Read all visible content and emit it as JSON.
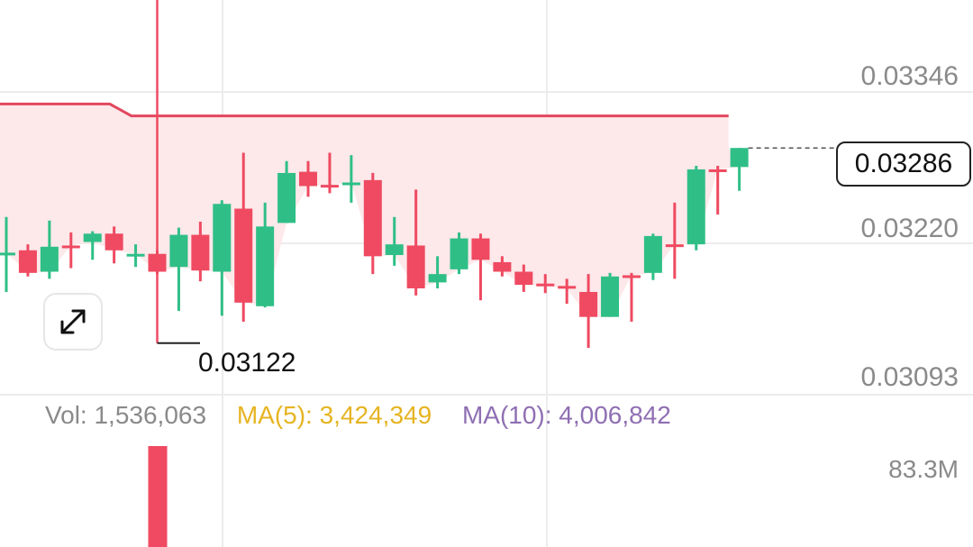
{
  "axis": {
    "price_labels": [
      "0.03346",
      "0.03220",
      "0.03093"
    ],
    "volume_max_label": "83.3M"
  },
  "current_price_tag": "0.03286",
  "crosshair_low_label": "0.03122",
  "volume_info": {
    "vol": "Vol: 1,536,063",
    "ma5": "MA(5): 3,424,349",
    "ma10": "MA(10): 4,006,842"
  },
  "colors": {
    "up": "#2fbf86",
    "down": "#ef4a61",
    "band_fill": "#fde8ea",
    "band_line": "#e2475e",
    "grid": "#ececec"
  },
  "icons": {
    "expand": "expand-arrows-icon"
  },
  "chart_data": {
    "type": "candlestick",
    "y_axis": {
      "labels": [
        0.03346,
        0.0322,
        0.03093
      ],
      "range": [
        0.0306,
        0.034
      ]
    },
    "current_price": 0.03286,
    "crosshair_low": 0.03122,
    "band_upper": [
      {
        "i": -1,
        "v": 0.03323
      },
      {
        "i": 4.8,
        "v": 0.03323
      },
      {
        "i": 5.8,
        "v": 0.03313
      },
      {
        "i": 33.5,
        "v": 0.03313
      }
    ],
    "candles": [
      {
        "o": 0.03198,
        "c": 0.03198,
        "h": 0.03228,
        "l": 0.03165
      },
      {
        "o": 0.032,
        "c": 0.03181,
        "h": 0.03205,
        "l": 0.03178
      },
      {
        "o": 0.03182,
        "c": 0.03203,
        "h": 0.03225,
        "l": 0.03176
      },
      {
        "o": 0.03204,
        "c": 0.03204,
        "h": 0.03215,
        "l": 0.03185
      },
      {
        "o": 0.03207,
        "c": 0.03214,
        "h": 0.03216,
        "l": 0.03192
      },
      {
        "o": 0.03214,
        "c": 0.032,
        "h": 0.0322,
        "l": 0.03189
      },
      {
        "o": 0.03197,
        "c": 0.03197,
        "h": 0.03205,
        "l": 0.03186
      },
      {
        "o": 0.03197,
        "c": 0.03182,
        "h": 0.032,
        "l": 0.0318
      },
      {
        "o": 0.03186,
        "c": 0.03213,
        "h": 0.03219,
        "l": 0.03149
      },
      {
        "o": 0.03213,
        "c": 0.03183,
        "h": 0.03224,
        "l": 0.03174
      },
      {
        "o": 0.03182,
        "c": 0.03239,
        "h": 0.03242,
        "l": 0.03145
      },
      {
        "o": 0.03235,
        "c": 0.03156,
        "h": 0.03282,
        "l": 0.0314
      },
      {
        "o": 0.03153,
        "c": 0.0322,
        "h": 0.0324,
        "l": 0.03152
      },
      {
        "o": 0.03223,
        "c": 0.03265,
        "h": 0.03275,
        "l": 0.03223
      },
      {
        "o": 0.03266,
        "c": 0.03254,
        "h": 0.03275,
        "l": 0.03245
      },
      {
        "o": 0.03255,
        "c": 0.03255,
        "h": 0.03282,
        "l": 0.03248
      },
      {
        "o": 0.03257,
        "c": 0.03257,
        "h": 0.0328,
        "l": 0.0324
      },
      {
        "o": 0.03259,
        "c": 0.03195,
        "h": 0.03265,
        "l": 0.0318
      },
      {
        "o": 0.03196,
        "c": 0.03205,
        "h": 0.03228,
        "l": 0.03187
      },
      {
        "o": 0.03204,
        "c": 0.03168,
        "h": 0.03251,
        "l": 0.03162
      },
      {
        "o": 0.03173,
        "c": 0.0318,
        "h": 0.03195,
        "l": 0.03168
      },
      {
        "o": 0.03184,
        "c": 0.0321,
        "h": 0.03215,
        "l": 0.0318
      },
      {
        "o": 0.0321,
        "c": 0.03192,
        "h": 0.03214,
        "l": 0.03158
      },
      {
        "o": 0.0319,
        "c": 0.03182,
        "h": 0.03195,
        "l": 0.03178
      },
      {
        "o": 0.03182,
        "c": 0.03171,
        "h": 0.03188,
        "l": 0.03165
      },
      {
        "o": 0.03172,
        "c": 0.0317,
        "h": 0.0318,
        "l": 0.03164
      },
      {
        "o": 0.0317,
        "c": 0.03168,
        "h": 0.03176,
        "l": 0.03155
      },
      {
        "o": 0.03165,
        "c": 0.03144,
        "h": 0.0318,
        "l": 0.03118
      },
      {
        "o": 0.03144,
        "c": 0.03178,
        "h": 0.03181,
        "l": 0.03144
      },
      {
        "o": 0.03179,
        "c": 0.03179,
        "h": 0.03181,
        "l": 0.0314
      },
      {
        "o": 0.03181,
        "c": 0.03212,
        "h": 0.03214,
        "l": 0.03175
      },
      {
        "o": 0.03205,
        "c": 0.03205,
        "h": 0.0324,
        "l": 0.03176
      },
      {
        "o": 0.03205,
        "c": 0.03268,
        "h": 0.03271,
        "l": 0.032
      },
      {
        "o": 0.03268,
        "c": 0.03268,
        "h": 0.03271,
        "l": 0.0323
      },
      {
        "o": 0.0327,
        "c": 0.03286,
        "h": 0.03286,
        "l": 0.0325
      }
    ],
    "volume_bars": [
      {
        "index": 7,
        "direction": "down"
      }
    ]
  }
}
